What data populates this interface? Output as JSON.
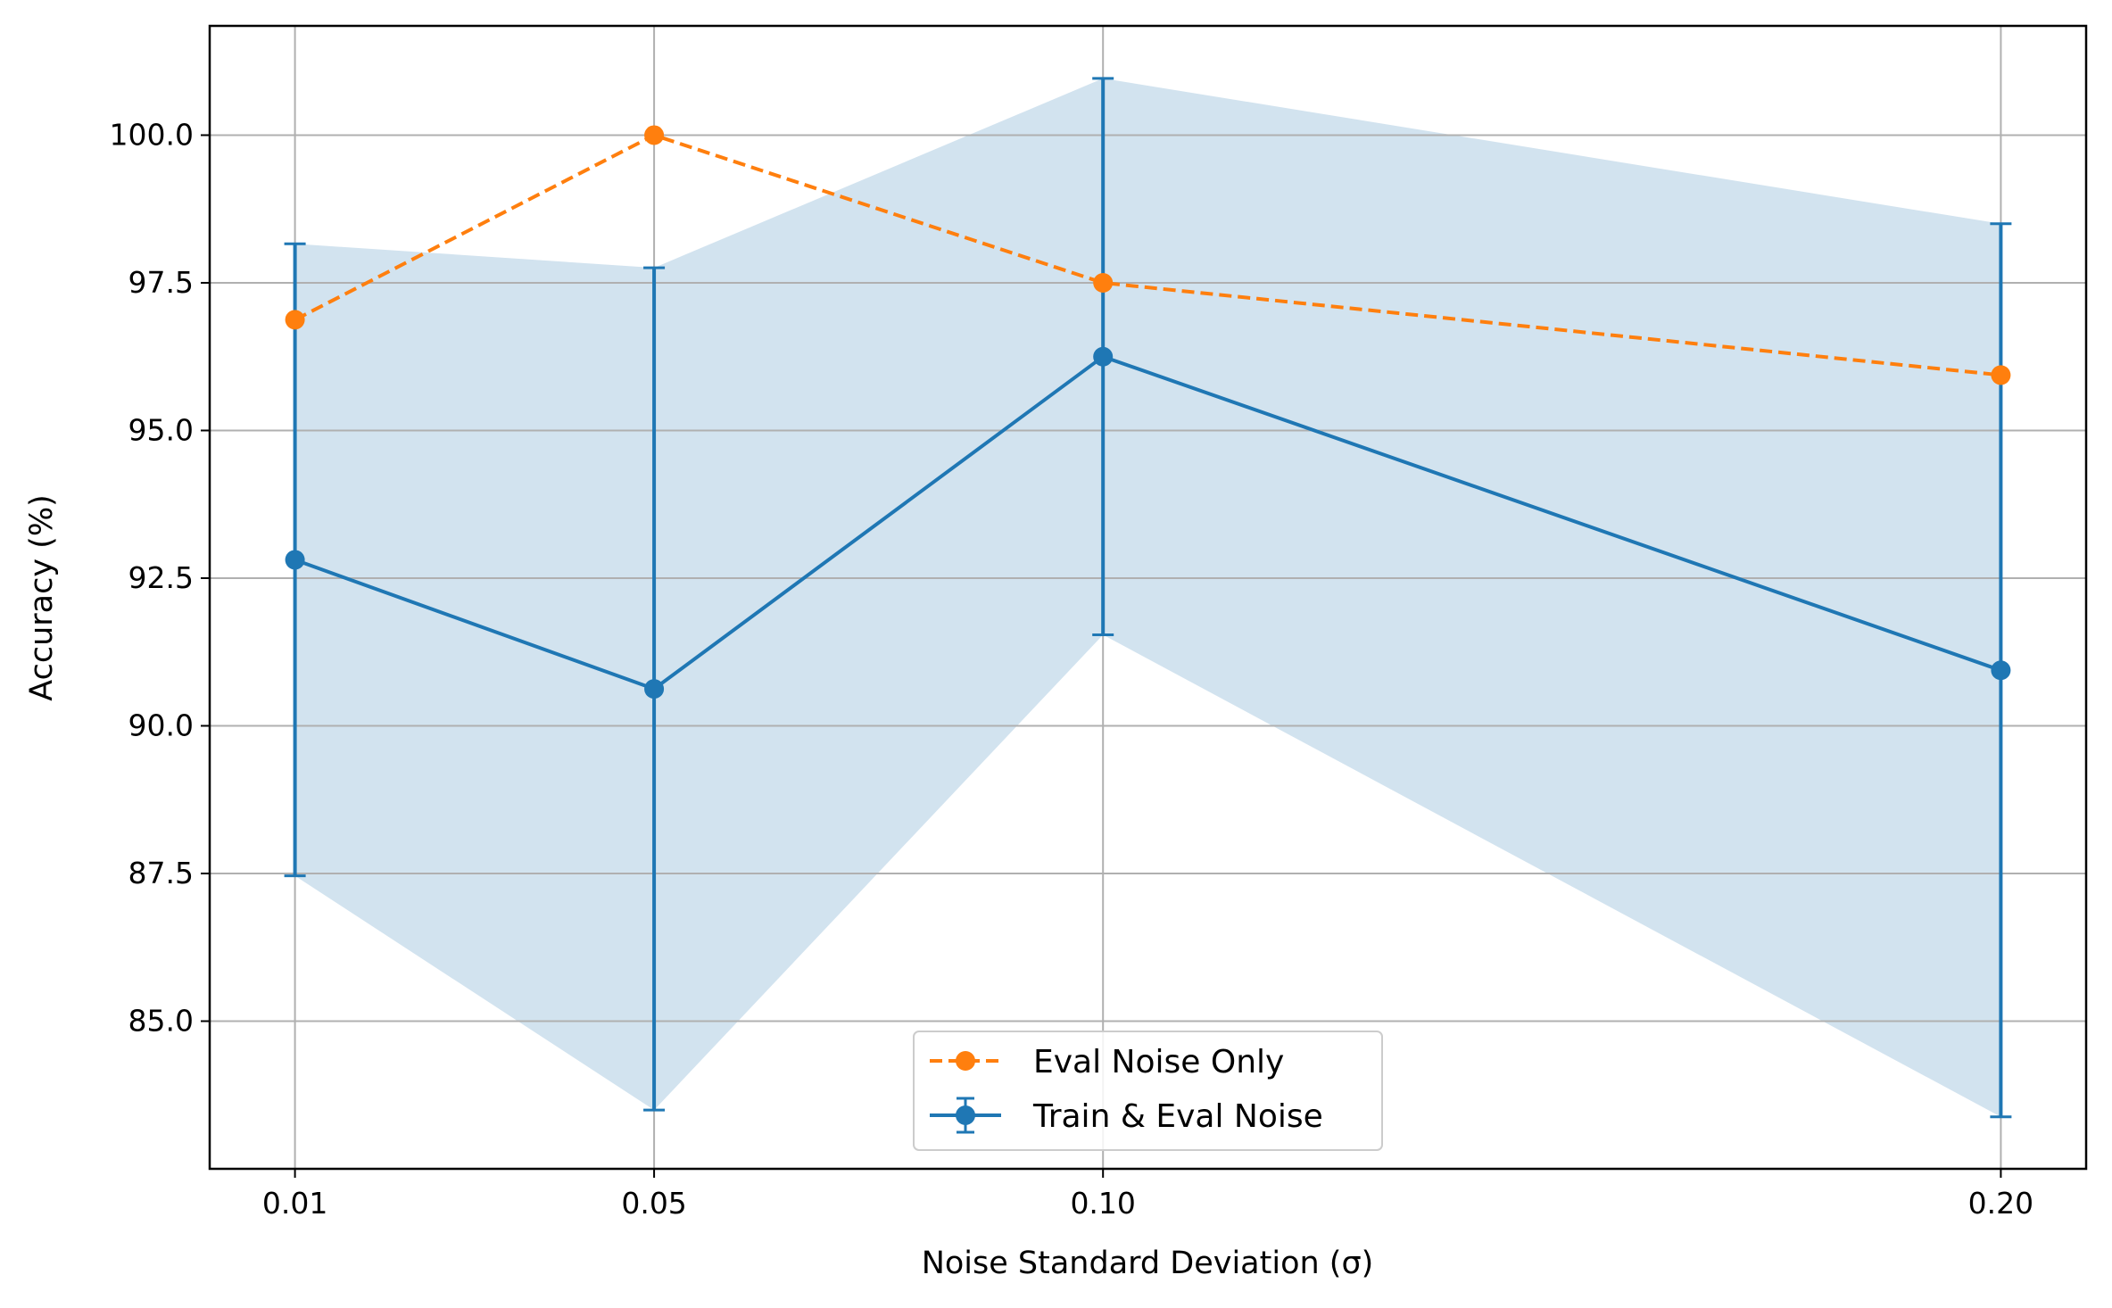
{
  "chart_data": {
    "type": "line",
    "title": "",
    "xlabel": "Noise Standard Deviation (σ)",
    "ylabel": "Accuracy (%)",
    "x": [
      0.01,
      0.05,
      0.1,
      0.2
    ],
    "x_tick_labels": [
      "0.01",
      "0.05",
      "0.10",
      "0.20"
    ],
    "y_ticks": [
      85.0,
      87.5,
      90.0,
      92.5,
      95.0,
      97.5,
      100.0
    ],
    "y_tick_labels": [
      "85.0",
      "87.5",
      "90.0",
      "92.5",
      "95.0",
      "97.5",
      "100.0"
    ],
    "xlim": [
      0.0005,
      0.2095
    ],
    "ylim": [
      82.5,
      101.85
    ],
    "grid": true,
    "legend_position": "bottom-center",
    "series": [
      {
        "name": "Eval Noise Only",
        "style": "dashed",
        "marker": "circle",
        "color": "#ff7f0e",
        "values": [
          96.875,
          100.0,
          97.5,
          95.9375
        ]
      },
      {
        "name": "Train & Eval Noise",
        "style": "solid",
        "marker": "circle",
        "color": "#1f77b4",
        "band_color": "#d2e3ef",
        "values": [
          92.81,
          90.625,
          96.25,
          90.94
        ],
        "error": [
          5.35,
          7.13,
          4.71,
          7.56
        ]
      }
    ]
  }
}
